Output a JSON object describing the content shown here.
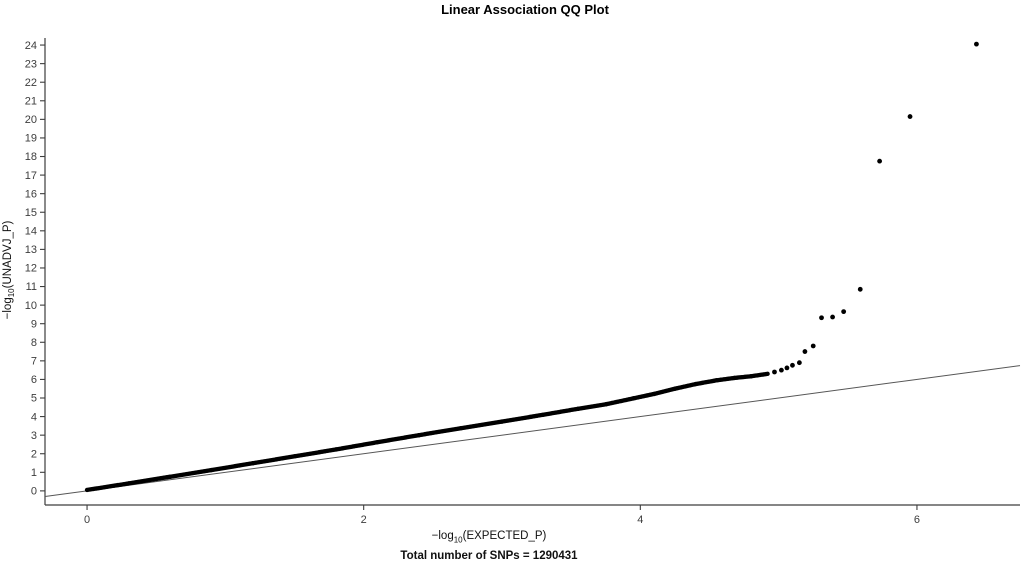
{
  "chart_data": {
    "type": "scatter",
    "title": "Linear Association QQ Plot",
    "xlabel": {
      "prefix": "−log",
      "sub": "10",
      "suffix": "(EXPECTED_P)"
    },
    "ylabel": {
      "prefix": "−log",
      "sub": "10",
      "suffix": "(UNADVJ_P)"
    },
    "caption": "Total number of SNPs = 1290431",
    "grid": false,
    "legend": "none",
    "xlim": [
      -0.304,
      6.745
    ],
    "ylim": [
      -0.76,
      24.38
    ],
    "x_ticks": [
      0,
      2,
      4,
      6
    ],
    "y_ticks": [
      0,
      1,
      2,
      3,
      4,
      5,
      6,
      7,
      8,
      9,
      10,
      11,
      12,
      13,
      14,
      15,
      16,
      17,
      18,
      19,
      20,
      21,
      22,
      23,
      24
    ],
    "identity_line": {
      "slope": 1,
      "intercept": 0
    },
    "series": [
      {
        "name": "snp-quantiles",
        "marker_radius": 2.2,
        "chain_anchors": [
          [
            0,
            0.05
          ],
          [
            0.3,
            0.4
          ],
          [
            0.6,
            0.76
          ],
          [
            0.9,
            1.12
          ],
          [
            1.2,
            1.49
          ],
          [
            1.5,
            1.86
          ],
          [
            1.8,
            2.23
          ],
          [
            2.1,
            2.62
          ],
          [
            2.4,
            3.0
          ],
          [
            2.7,
            3.37
          ],
          [
            3.0,
            3.73
          ],
          [
            3.3,
            4.1
          ],
          [
            3.55,
            4.42
          ],
          [
            3.75,
            4.66
          ],
          [
            3.95,
            4.98
          ],
          [
            4.1,
            5.22
          ],
          [
            4.25,
            5.5
          ],
          [
            4.4,
            5.75
          ],
          [
            4.55,
            5.95
          ],
          [
            4.68,
            6.08
          ],
          [
            4.8,
            6.17
          ],
          [
            4.92,
            6.3
          ]
        ],
        "tail_points": [
          [
            4.97,
            6.4
          ],
          [
            5.02,
            6.5
          ],
          [
            5.06,
            6.62
          ],
          [
            5.1,
            6.76
          ],
          [
            5.15,
            6.9
          ],
          [
            5.19,
            7.5
          ],
          [
            5.25,
            7.8
          ],
          [
            5.31,
            9.32
          ],
          [
            5.39,
            9.36
          ],
          [
            5.47,
            9.65
          ],
          [
            5.59,
            10.85
          ],
          [
            5.73,
            17.75
          ],
          [
            5.95,
            20.15
          ],
          [
            6.43,
            24.05
          ]
        ]
      }
    ],
    "colors": {
      "points": "#000000",
      "axis": "#3d3d3d",
      "tick_text": "#3d3d3d",
      "identity_line": "#565656",
      "background": "#ffffff"
    }
  }
}
